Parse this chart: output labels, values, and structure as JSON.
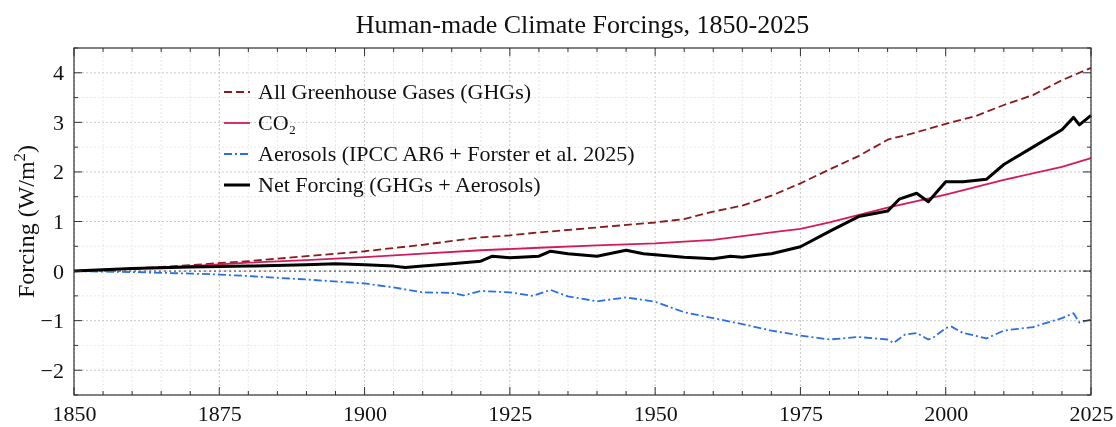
{
  "chart_data": {
    "type": "line",
    "title": "Human-made Climate Forcings, 1850-2025",
    "ylabel": "Forcing (W/m$^{2}$)",
    "xlim": [
      1850,
      2025
    ],
    "xticks": [
      1850,
      1875,
      1900,
      1925,
      1950,
      1975,
      2000,
      2025
    ],
    "ylim": [
      -2.5,
      4.5
    ],
    "yticks": [
      {
        "value": -2,
        "label": "−2"
      },
      {
        "value": -1,
        "label": "−1"
      },
      0,
      1,
      2,
      3,
      4
    ],
    "grid": true,
    "legend": "top left",
    "ref_lines": [
      {
        "axis": "y",
        "value": 0,
        "color": "#333333",
        "line_style": "dotted"
      }
    ],
    "series": [
      {
        "name": "All Greenhouse Gases (GHGs)",
        "color": "#8b1a1a",
        "line_style": "dashed",
        "x": [
          1850,
          1860,
          1870,
          1880,
          1890,
          1900,
          1910,
          1920,
          1925,
          1930,
          1940,
          1950,
          1955,
          1960,
          1965,
          1970,
          1975,
          1980,
          1985,
          1990,
          1995,
          2000,
          2005,
          2010,
          2015,
          2020,
          2025
        ],
        "values": [
          0,
          0.05,
          0.12,
          0.2,
          0.3,
          0.4,
          0.53,
          0.68,
          0.72,
          0.78,
          0.88,
          0.98,
          1.05,
          1.2,
          1.32,
          1.52,
          1.77,
          2.05,
          2.32,
          2.65,
          2.8,
          2.97,
          3.12,
          3.35,
          3.55,
          3.85,
          4.1
        ]
      },
      {
        "name": "CO₂",
        "color": "#d41a5c",
        "line_style": "solid",
        "x": [
          1850,
          1870,
          1880,
          1890,
          1900,
          1910,
          1920,
          1930,
          1940,
          1950,
          1960,
          1970,
          1975,
          1980,
          1990,
          2000,
          2010,
          2020,
          2025
        ],
        "values": [
          0,
          0.1,
          0.17,
          0.22,
          0.28,
          0.35,
          0.42,
          0.47,
          0.52,
          0.56,
          0.63,
          0.78,
          0.85,
          0.98,
          1.28,
          1.54,
          1.84,
          2.1,
          2.28
        ]
      },
      {
        "name": "Aerosols (IPCC AR6 + Forster et al. 2025)",
        "color": "#2a6ee8",
        "line_style": "dashdot",
        "x": [
          1850,
          1860,
          1870,
          1875,
          1880,
          1890,
          1900,
          1905,
          1910,
          1915,
          1917,
          1920,
          1925,
          1929,
          1932,
          1935,
          1940,
          1945,
          1950,
          1955,
          1960,
          1965,
          1970,
          1975,
          1980,
          1985,
          1990,
          1991,
          1993,
          1995,
          1997,
          1998,
          2000,
          2001,
          2003,
          2005,
          2007,
          2010,
          2015,
          2020,
          2022,
          2023,
          2025
        ],
        "values": [
          0,
          -0.02,
          -0.05,
          -0.07,
          -0.1,
          -0.17,
          -0.25,
          -0.33,
          -0.43,
          -0.44,
          -0.49,
          -0.4,
          -0.43,
          -0.5,
          -0.38,
          -0.51,
          -0.61,
          -0.53,
          -0.62,
          -0.83,
          -0.95,
          -1.07,
          -1.2,
          -1.3,
          -1.38,
          -1.33,
          -1.38,
          -1.45,
          -1.28,
          -1.25,
          -1.38,
          -1.33,
          -1.15,
          -1.12,
          -1.25,
          -1.3,
          -1.36,
          -1.2,
          -1.13,
          -0.95,
          -0.85,
          -1.04,
          -0.98
        ]
      },
      {
        "name": "Net Forcing (GHGs + Aerosols)",
        "color": "#000000",
        "line_style": "solid",
        "x": [
          1850,
          1860,
          1870,
          1880,
          1890,
          1895,
          1900,
          1905,
          1907,
          1910,
          1915,
          1920,
          1922,
          1925,
          1930,
          1932,
          1935,
          1940,
          1945,
          1948,
          1950,
          1955,
          1960,
          1963,
          1965,
          1970,
          1975,
          1980,
          1985,
          1990,
          1992,
          1995,
          1997,
          2000,
          2003,
          2007,
          2010,
          2015,
          2020,
          2022,
          2023,
          2025
        ],
        "values": [
          0,
          0.05,
          0.08,
          0.1,
          0.13,
          0.15,
          0.13,
          0.1,
          0.07,
          0.1,
          0.15,
          0.2,
          0.3,
          0.27,
          0.3,
          0.4,
          0.35,
          0.3,
          0.42,
          0.35,
          0.33,
          0.28,
          0.25,
          0.3,
          0.28,
          0.35,
          0.49,
          0.8,
          1.1,
          1.21,
          1.45,
          1.57,
          1.4,
          1.8,
          1.8,
          1.85,
          2.15,
          2.5,
          2.85,
          3.1,
          2.95,
          3.14
        ]
      }
    ]
  }
}
